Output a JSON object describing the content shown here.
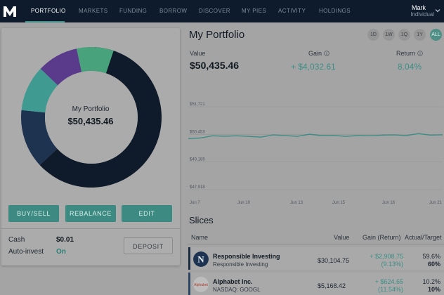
{
  "nav": {
    "items": [
      {
        "label": "PORTFOLIO",
        "active": true
      },
      {
        "label": "MARKETS",
        "active": false
      },
      {
        "label": "FUNDING",
        "active": false
      },
      {
        "label": "BORROW",
        "active": false
      },
      {
        "label": "DISCOVER",
        "active": false
      },
      {
        "label": "MY PIES",
        "active": false
      },
      {
        "label": "ACTIVITY",
        "active": false
      },
      {
        "label": "HOLDINGS",
        "active": false
      }
    ],
    "user": {
      "name": "Mark",
      "type": "Individual"
    }
  },
  "pie": {
    "title": "My Portfolio",
    "value": "$50,435.46",
    "segments": [
      {
        "color": "#0f1a2a",
        "share": 0.625
      },
      {
        "color": "#1d3350",
        "share": 0.135
      },
      {
        "color": "#3f9a92",
        "share": 0.105
      },
      {
        "color": "#5a3a8a",
        "share": 0.095
      },
      {
        "color": "#48a27b",
        "share": 0.085
      }
    ]
  },
  "actions": {
    "buy_sell": "BUY/SELL",
    "rebalance": "REBALANCE",
    "edit": "EDIT",
    "deposit": "DEPOSIT"
  },
  "account": {
    "cash_label": "Cash",
    "cash_value": "$0.01",
    "auto_label": "Auto-invest",
    "auto_value": "On"
  },
  "header": {
    "title": "My Portfolio",
    "ranges": [
      {
        "label": "1D",
        "active": false
      },
      {
        "label": "1W",
        "active": false
      },
      {
        "label": "1Q",
        "active": false
      },
      {
        "label": "1Y",
        "active": false
      },
      {
        "label": "ALL",
        "active": true
      }
    ]
  },
  "stats": {
    "value_label": "Value",
    "value": "$50,435.46",
    "gain_label": "Gain",
    "gain": "+ $4,032.61",
    "return_label": "Return",
    "return": "8.04%"
  },
  "chart_data": {
    "type": "line",
    "x_ticks": [
      "Jun 7",
      "Jun 10",
      "Jun 13",
      "Jun 15",
      "Jun 18",
      "Jun 21"
    ],
    "y_ticks": [
      "$51,721",
      "$50,453",
      "$49,185",
      "$47,918"
    ],
    "ylim": [
      47918,
      51721
    ],
    "grid": true,
    "line_color": "#3d8e86",
    "values": [
      50260,
      50290,
      50390,
      50370,
      50390,
      50360,
      50330,
      50430,
      50400,
      50360,
      50460,
      50400,
      50410,
      50360,
      50400,
      50390,
      50420,
      50430,
      50400,
      50490,
      50420,
      50435
    ]
  },
  "slices": {
    "title": "Slices",
    "columns": {
      "name": "Name",
      "value": "Value",
      "gain": "Gain (Return)",
      "actual": "Actual/Target"
    },
    "rows": [
      {
        "name": "Responsible Investing",
        "sub": "Responsible Investing",
        "logo_text": "N",
        "value": "$30,104.75",
        "gain": "+ $2,908.75",
        "gain_pct": "(9.13%)",
        "actual": "59.6%",
        "target": "60%"
      },
      {
        "name": "Alphabet Inc.",
        "sub": "NASDAQ: GOOGL",
        "logo_text": "Alphabet",
        "value": "$5,168.42",
        "gain": "+ $624.65",
        "gain_pct": "(11.54%)",
        "actual": "10.2%",
        "target": "10%"
      }
    ]
  }
}
